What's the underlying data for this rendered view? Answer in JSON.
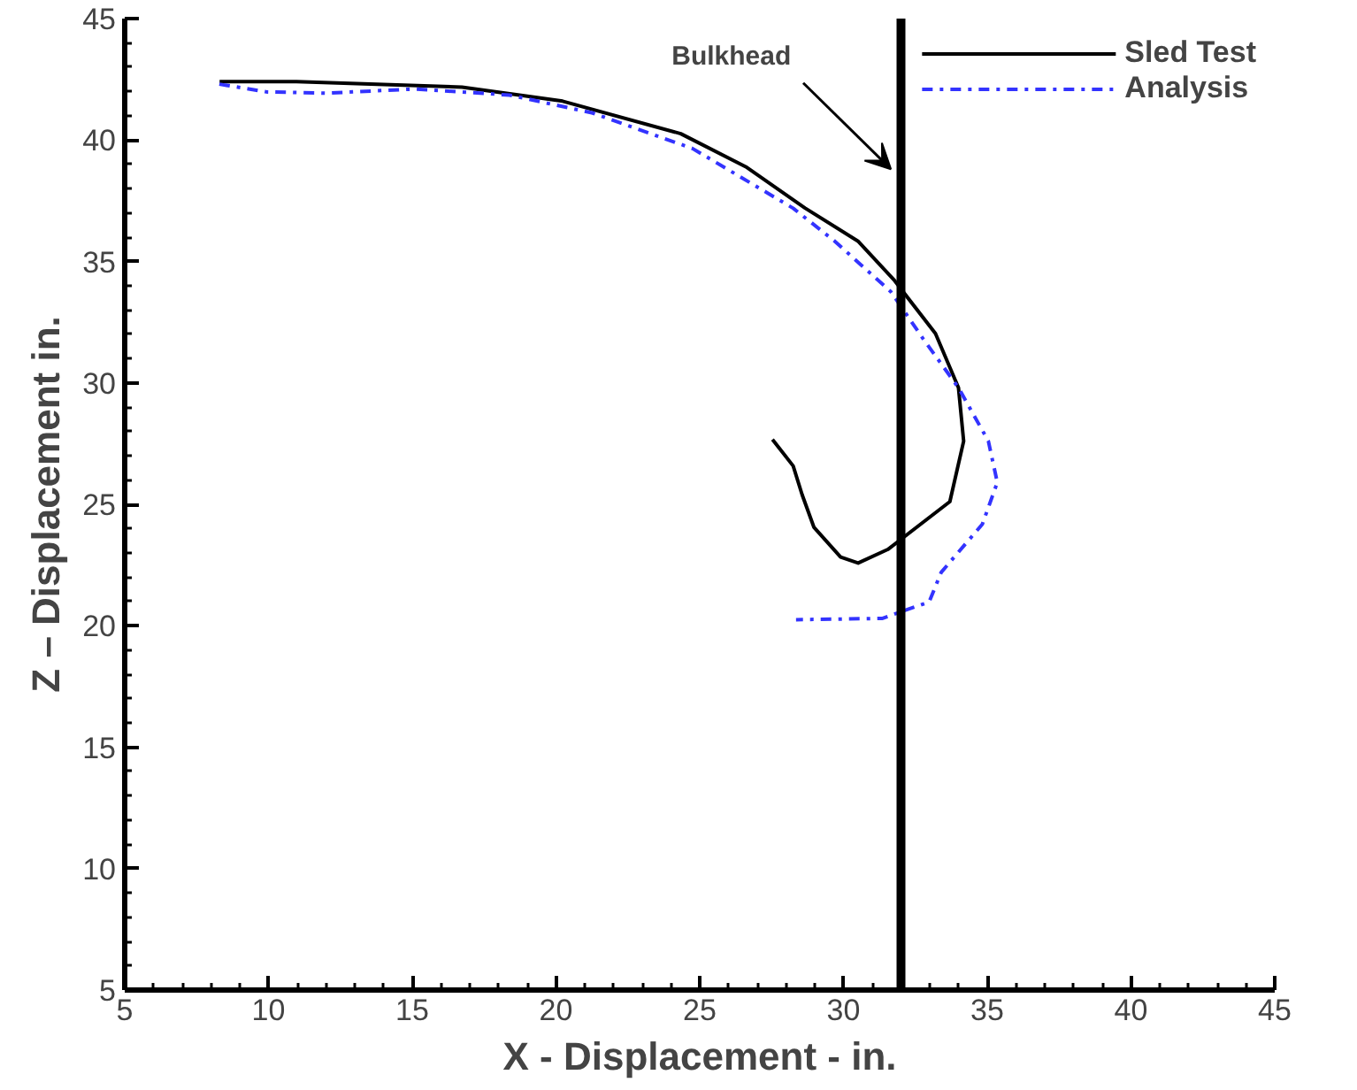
{
  "chart_data": {
    "type": "line",
    "xlabel": "X - Displacement - in.",
    "ylabel": "Z – Displacement in.",
    "xlim": [
      5,
      45
    ],
    "ylim": [
      5,
      45
    ],
    "xticks": [
      5,
      10,
      15,
      20,
      25,
      30,
      35,
      40,
      45
    ],
    "yticks": [
      5,
      10,
      15,
      20,
      25,
      30,
      35,
      40,
      45
    ],
    "grid": false,
    "legend": "top right",
    "ref_lines": [
      {
        "axis": "x",
        "value": 32,
        "label": "Bulkhead",
        "color": "#000000",
        "line_style": "solid"
      }
    ],
    "series": [
      {
        "name": "Sled Test",
        "color": "#000000",
        "line_style": "solid",
        "x": [
          8.3,
          10.97,
          16.73,
          20.23,
          24.34,
          26.6,
          28.66,
          30.5,
          31.75,
          33.2,
          34.0,
          34.18,
          33.7,
          31.54,
          30.51,
          29.9,
          28.97,
          28.56,
          28.25,
          27.53
        ],
        "values": [
          42.4,
          42.4,
          42.18,
          41.6,
          40.26,
          38.9,
          37.2,
          35.84,
          34.25,
          32.03,
          29.8,
          27.6,
          25.11,
          23.14,
          22.58,
          22.83,
          24.06,
          25.4,
          26.58,
          27.67
        ]
      },
      {
        "name": "Analysis",
        "color": "#3333ff",
        "line_style": "dashdot",
        "x": [
          8.29,
          9.94,
          12.0,
          15.1,
          18.38,
          21.25,
          24.75,
          28.25,
          29.69,
          31.65,
          32.78,
          34.0,
          35.04,
          35.35,
          34.83,
          33.4,
          32.98,
          31.34,
          28.35
        ],
        "values": [
          42.3,
          41.98,
          41.93,
          42.1,
          41.85,
          41.12,
          39.65,
          37.19,
          35.84,
          33.75,
          31.8,
          29.8,
          27.6,
          25.9,
          24.18,
          22.2,
          20.98,
          20.3,
          20.25
        ]
      }
    ]
  }
}
